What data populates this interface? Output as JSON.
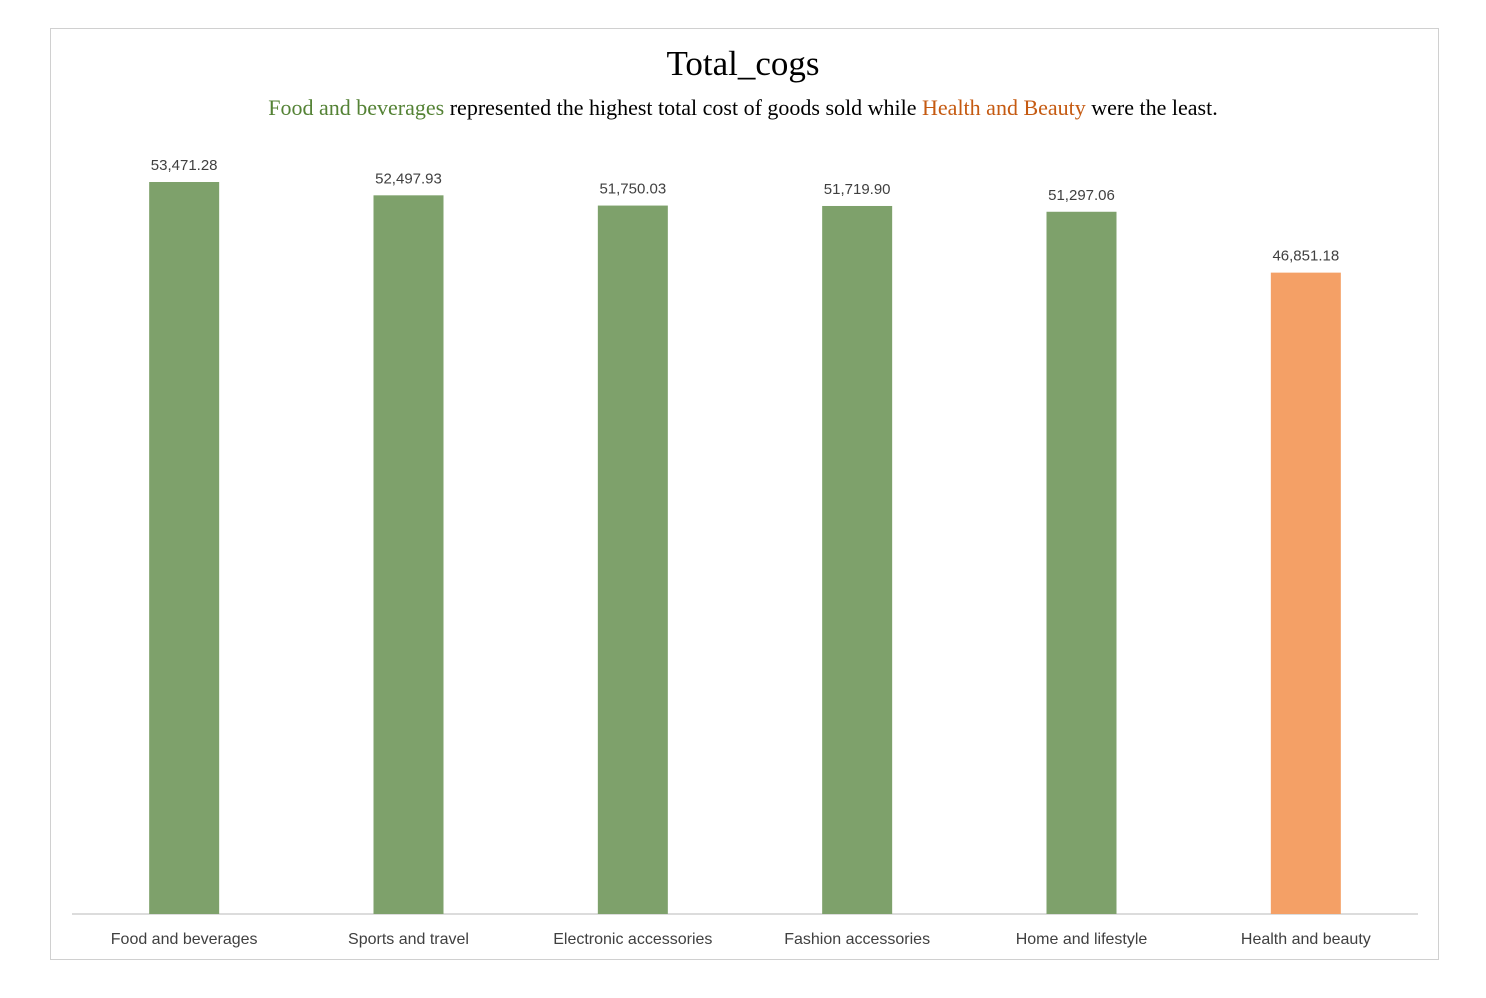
{
  "chart_data": {
    "type": "bar",
    "title": "Total_cogs",
    "subtitle": {
      "parts": [
        {
          "text": "Food and beverages",
          "color": "#548235"
        },
        {
          "text": " represented the highest total cost of goods sold while ",
          "color": "#000000"
        },
        {
          "text": "Health and Beauty",
          "color": "#c55a11"
        },
        {
          "text": " were the least.",
          "color": "#000000"
        }
      ]
    },
    "categories": [
      "Food and beverages",
      "Sports and travel",
      "Electronic accessories",
      "Fashion accessories",
      "Home and lifestyle",
      "Health and beauty"
    ],
    "values": [
      53471.28,
      52497.93,
      51750.03,
      51719.9,
      51297.06,
      46851.18
    ],
    "value_labels": [
      "53,471.28",
      "52,497.93",
      "51,750.03",
      "51,719.90",
      "51,297.06",
      "46,851.18"
    ],
    "colors": [
      "#7ea16b",
      "#7ea16b",
      "#7ea16b",
      "#7ea16b",
      "#7ea16b",
      "#f4a066"
    ],
    "ylim": [
      0,
      53471.28
    ],
    "axis_color": "#d0d0d0",
    "grid": false,
    "legend": "none",
    "xlabel": "",
    "ylabel": ""
  }
}
